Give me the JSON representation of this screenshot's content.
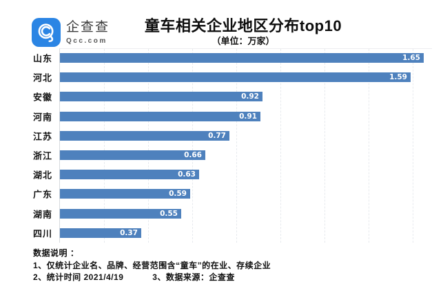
{
  "header": {
    "logo": {
      "brand": "企查查",
      "domain": "Qcc.com",
      "badge_color": "#2B85E4"
    },
    "title": "童车相关企业地区分布top10",
    "subtitle": "（单位：万家）"
  },
  "chart_data": {
    "type": "bar",
    "orientation": "horizontal",
    "title": "童车相关企业地区分布top10",
    "unit_label": "（单位：万家）",
    "categories": [
      "山东",
      "河北",
      "安徽",
      "河南",
      "江苏",
      "浙江",
      "湖北",
      "广东",
      "湖南",
      "四川"
    ],
    "values": [
      1.65,
      1.59,
      0.92,
      0.91,
      0.77,
      0.66,
      0.63,
      0.59,
      0.55,
      0.37
    ],
    "xlim": [
      0,
      1.69
    ],
    "gridline_interval": 0.2,
    "grid": true,
    "legend": false,
    "bar_color": "#4E81BD",
    "value_label_color": "#ffffff"
  },
  "footer": {
    "heading": "数据说明 ：",
    "note1": "1、仅统计企业名、品牌、经营范围含“童车”的在业、存续企业",
    "note2": "2、统计时间 2021/4/19",
    "note3": "3、数据来源：企查查"
  }
}
